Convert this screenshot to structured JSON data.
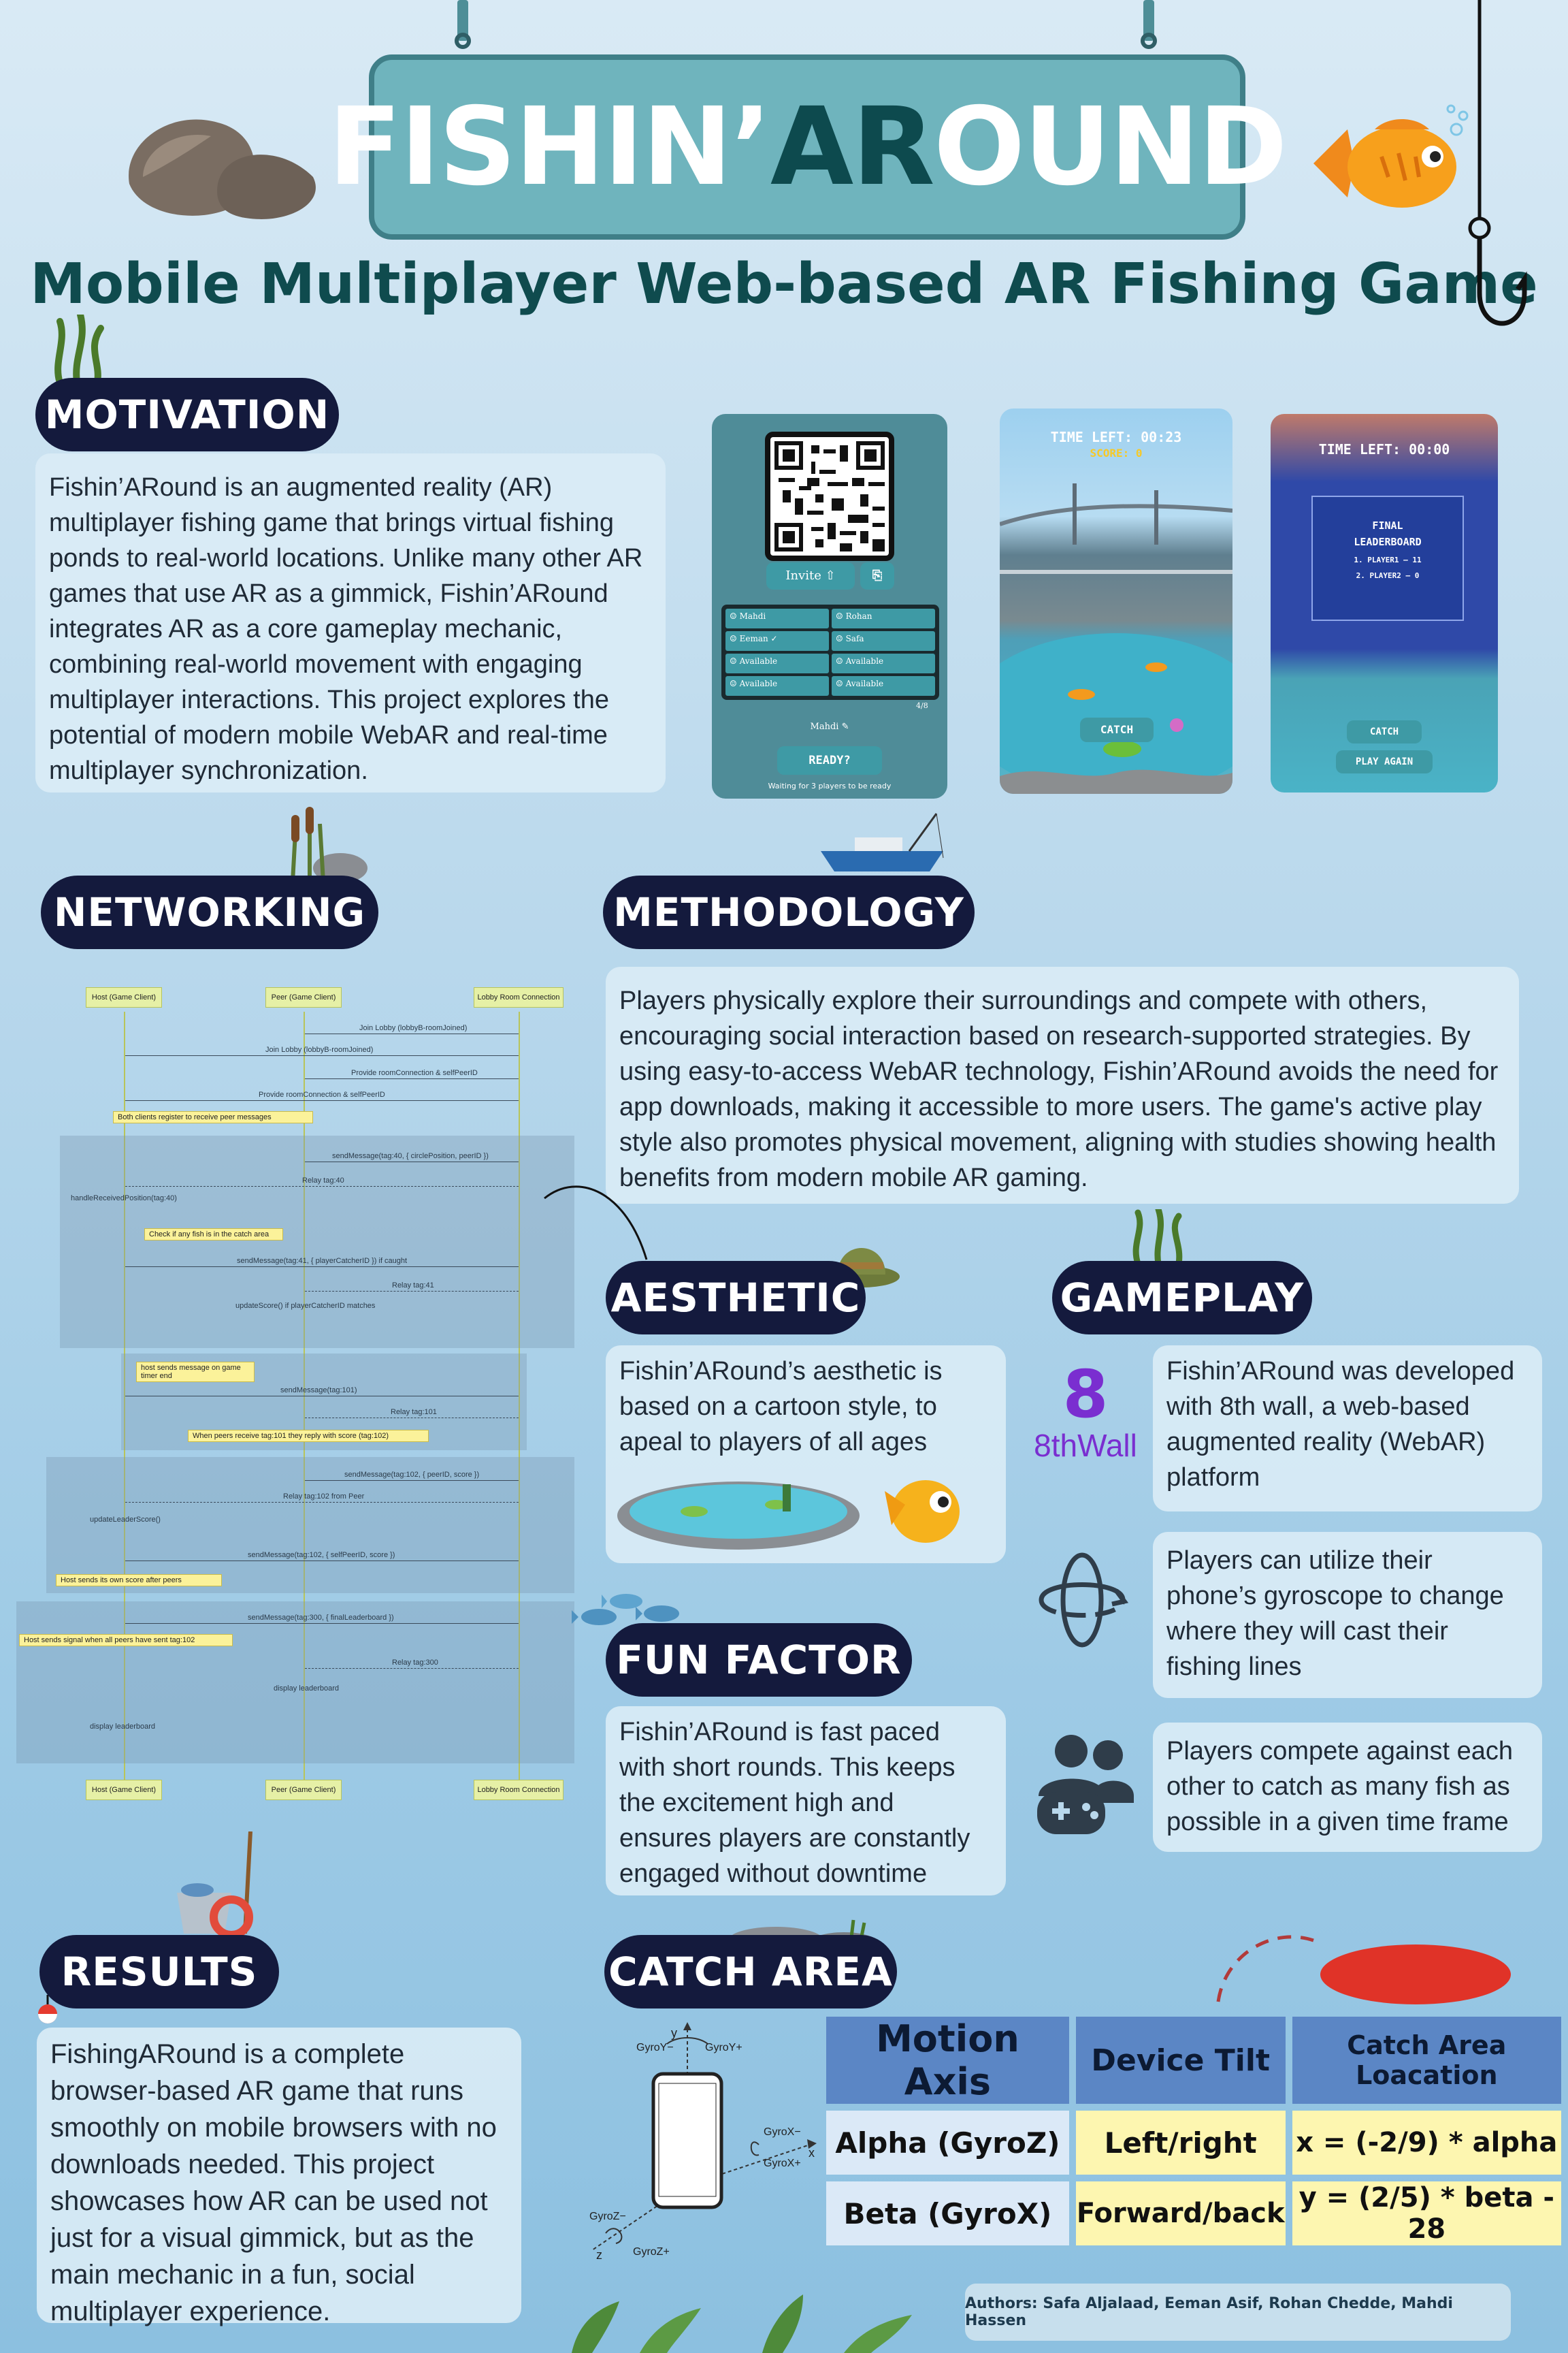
{
  "title": {
    "part1": "FISHIN’",
    "part2": "AR",
    "part3": "OUND"
  },
  "subtitle": "Mobile Multiplayer Web-based AR Fishing Game",
  "motivation": {
    "heading": "MOTIVATION",
    "text": "Fishin’ARound is an augmented reality (AR) multiplayer fishing game that brings virtual fishing ponds to real-world locations. Unlike many other AR games that use AR as a gimmick, Fishin’ARound integrates AR as a core gameplay mechanic, combining real-world movement with engaging multiplayer interactions. This project explores the potential of modern mobile WebAR and real-time multiplayer synchronization."
  },
  "lobby": {
    "invite": "Invite",
    "players": [
      "Mahdi",
      "Rohan",
      "Eeman",
      "Safa",
      "Available",
      "Available",
      "Available",
      "Available"
    ],
    "count": "4/8",
    "name": "Mahdi",
    "ready": "READY?",
    "waiting": "Waiting for 3 players to be ready"
  },
  "game": {
    "time": "TIME LEFT: 00:23",
    "score": "SCORE: 0",
    "catch": "CATCH"
  },
  "final": {
    "time": "TIME LEFT: 00:00",
    "heading": "FINAL LEADERBOARD",
    "rows": [
      "1. PLAYER1 — 11",
      "2. PLAYER2 — 0"
    ],
    "catch": "CATCH",
    "play_again": "PLAY AGAIN"
  },
  "networking": {
    "heading": "NETWORKING",
    "lanes": [
      "Host (Game Client)",
      "Peer (Game Client)",
      "Lobby Room Connection"
    ],
    "messages": [
      "Join Lobby (lobbyB-roomJoined)",
      "Join Lobby (lobbyB-roomJoined)",
      "Provide roomConnection & selfPeerID",
      "Provide roomConnection & selfPeerID",
      "sendMessage(tag:40, { circlePosition, peerID })",
      "Relay tag:40",
      "handleReceivedPosition(tag:40)",
      "sendMessage(tag:41, { playerCatcherID }) if caught",
      "Relay tag:41",
      "updateScore() if playerCatcherID matches",
      "sendMessage(tag:101)",
      "Relay tag:101",
      "sendMessage(tag:102, { peerID, score })",
      "Relay tag:102 from Peer",
      "updateLeaderScore()",
      "sendMessage(tag:102, { selfPeerID, score })",
      "sendMessage(tag:300, { finalLeaderboard })",
      "Relay tag:300",
      "display leaderboard",
      "display leaderboard"
    ],
    "notes": [
      "Both clients register to receive peer messages",
      "Check if any fish is in the catch area",
      "host sends message on game timer end",
      "When peers receive tag:101 they reply with score (tag:102)",
      "Host sends its own score after peers",
      "Host sends signal when all peers have sent tag:102"
    ]
  },
  "methodology": {
    "heading": "METHODOLOGY",
    "text": "Players physically explore their surroundings and compete with others, encouraging social interaction based on research-supported strategies. By using easy-to-access WebAR technology, Fishin’ARound avoids the need for app downloads, making it accessible to more users. The game's active play style also promotes physical movement, aligning with studies showing health benefits from modern mobile AR gaming."
  },
  "aesthetic": {
    "heading": "AESTHETIC",
    "text": "Fishin’ARound’s aesthetic is based on a cartoon style, to apeal to players of all ages"
  },
  "gameplay": {
    "heading": "GAMEPLAY",
    "logo_num": "8",
    "logo_text": "8thWall",
    "items": [
      "Fishin’ARound was developed with 8th wall, a web-based augmented reality (WebAR) platform",
      "Players can utilize their phone’s gyroscope to change where they will cast their fishing lines",
      "Players compete against each other to catch as many fish as possible in a given time frame"
    ]
  },
  "fun": {
    "heading": "FUN FACTOR",
    "text": "Fishin’ARound is fast paced with short rounds. This keeps the excitement high and ensures players are constantly engaged without downtime"
  },
  "results": {
    "heading": "RESULTS",
    "text": "FishingARound is a complete browser-based AR game that runs smoothly on mobile browsers with no downloads needed. This project showcases how AR can be used not just for a visual gimmick, but as the main mechanic in a fun, social multiplayer experience."
  },
  "catch": {
    "heading": "CATCH AREA",
    "axes": {
      "y": "y",
      "x": "x",
      "z": "z",
      "gyroy_minus": "GyroY−",
      "gyroy_plus": "GyroY+",
      "gyrox_minus": "GyroX−",
      "gyrox_plus": "GyroX+",
      "gyroz_minus": "GyroZ−",
      "gyroz_plus": "GyroZ+"
    },
    "headers": [
      "Motion Axis",
      "Device Tilt",
      "Catch Area Loacation"
    ],
    "rows": [
      [
        "Alpha (GyroZ)",
        "Left/right",
        "x = (-2/9) * alpha"
      ],
      [
        "Beta (GyroX)",
        "Forward/back",
        "y = (2/5) * beta - 28"
      ]
    ]
  },
  "authors": "Authors: Safa Aljalaad, Eeman Asif, Rohan Chedde, Mahdi Hassen",
  "colors": {
    "navy": "#141a3d",
    "teal": "#4e9ea7",
    "dark_teal": "#0f4f4f",
    "table_header": "#5b86c5",
    "table_cell_left": "#dbe9f7",
    "table_cell_right": "#fdf6b0"
  }
}
